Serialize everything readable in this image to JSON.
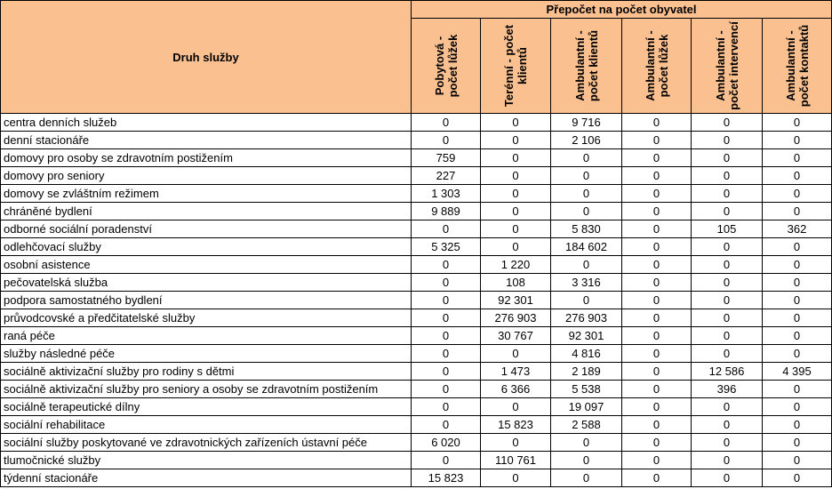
{
  "header": {
    "row_label": "Druh služby",
    "group_label": "Přepočet na počet obyvatel",
    "columns": [
      "Pobytová - počet lůžek",
      "Terénní - počet klientů",
      "Ambulantní - počet klientů",
      "Ambulantní - počet lůžek",
      "Ambulantní - počet intervencí",
      "Ambulantní - počet kontaktů"
    ]
  },
  "rows": [
    {
      "name": "centra denních služeb",
      "values": [
        "0",
        "0",
        "9 716",
        "0",
        "0",
        "0"
      ]
    },
    {
      "name": "denní stacionáře",
      "values": [
        "0",
        "0",
        "2 106",
        "0",
        "0",
        "0"
      ]
    },
    {
      "name": "domovy pro osoby se zdravotním postižením",
      "values": [
        "759",
        "0",
        "0",
        "0",
        "0",
        "0"
      ]
    },
    {
      "name": "domovy pro seniory",
      "values": [
        "227",
        "0",
        "0",
        "0",
        "0",
        "0"
      ]
    },
    {
      "name": "domovy se zvláštním režimem",
      "values": [
        "1 303",
        "0",
        "0",
        "0",
        "0",
        "0"
      ]
    },
    {
      "name": "chráněné bydlení",
      "values": [
        "9 889",
        "0",
        "0",
        "0",
        "0",
        "0"
      ]
    },
    {
      "name": "odborné sociální poradenství",
      "values": [
        "0",
        "0",
        "5 830",
        "0",
        "105",
        "362"
      ]
    },
    {
      "name": "odlehčovací služby",
      "values": [
        "5 325",
        "0",
        "184 602",
        "0",
        "0",
        "0"
      ]
    },
    {
      "name": "osobní asistence",
      "values": [
        "0",
        "1 220",
        "0",
        "0",
        "0",
        "0"
      ]
    },
    {
      "name": "pečovatelská služba",
      "values": [
        "0",
        "108",
        "3 316",
        "0",
        "0",
        "0"
      ]
    },
    {
      "name": "podpora samostatného bydlení",
      "values": [
        "0",
        "92 301",
        "0",
        "0",
        "0",
        "0"
      ]
    },
    {
      "name": "průvodcovské a předčitatelské služby",
      "values": [
        "0",
        "276 903",
        "276 903",
        "0",
        "0",
        "0"
      ]
    },
    {
      "name": "raná péče",
      "values": [
        "0",
        "30 767",
        "92 301",
        "0",
        "0",
        "0"
      ]
    },
    {
      "name": "služby následné péče",
      "values": [
        "0",
        "0",
        "4 816",
        "0",
        "0",
        "0"
      ]
    },
    {
      "name": "sociálně aktivizační služby pro rodiny s dětmi",
      "values": [
        "0",
        "1 473",
        "2 189",
        "0",
        "12 586",
        "4 395"
      ]
    },
    {
      "name": "sociálně aktivizační služby pro seniory a osoby se zdravotním postižením",
      "values": [
        "0",
        "6 366",
        "5 538",
        "0",
        "396",
        "0"
      ]
    },
    {
      "name": "sociálně terapeutické dílny",
      "values": [
        "0",
        "0",
        "19 097",
        "0",
        "0",
        "0"
      ]
    },
    {
      "name": "sociální rehabilitace",
      "values": [
        "0",
        "15 823",
        "2 588",
        "0",
        "0",
        "0"
      ]
    },
    {
      "name": "sociální služby poskytované ve zdravotnických zařízeních ústavní péče",
      "values": [
        "6 020",
        "0",
        "0",
        "0",
        "0",
        "0"
      ]
    },
    {
      "name": "tlumočnické služby",
      "values": [
        "0",
        "110 761",
        "0",
        "0",
        "0",
        "0"
      ]
    },
    {
      "name": "týdenní stacionáře",
      "values": [
        "15 823",
        "0",
        "0",
        "0",
        "0",
        "0"
      ]
    }
  ],
  "colors": {
    "header_bg": "#fac08f",
    "grid": "#000000"
  }
}
